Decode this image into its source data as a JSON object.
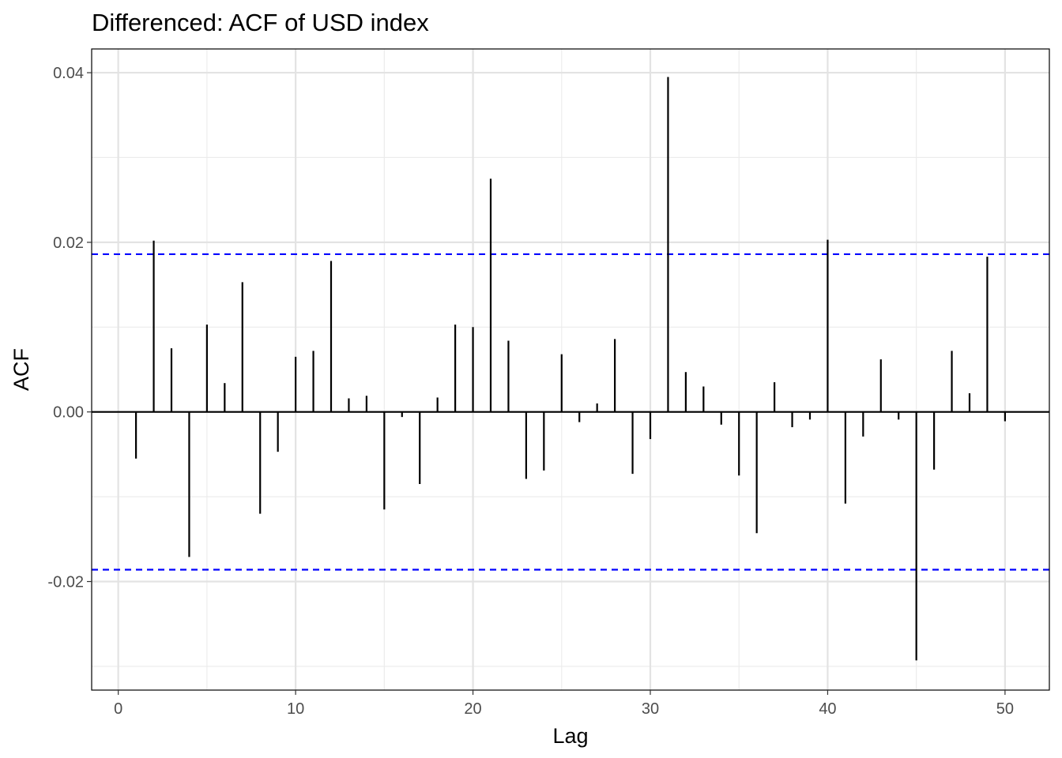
{
  "chart_data": {
    "type": "bar",
    "title": "Differenced: ACF of USD index",
    "xlabel": "Lag",
    "ylabel": "ACF",
    "xlim": [
      -1.5,
      52.5
    ],
    "ylim": [
      -0.0328,
      0.0428
    ],
    "x_ticks": [
      0,
      10,
      20,
      30,
      40,
      50
    ],
    "x_tick_labels": [
      "0",
      "10",
      "20",
      "30",
      "40",
      "50"
    ],
    "y_ticks": [
      -0.02,
      0.0,
      0.02,
      0.04
    ],
    "y_tick_labels": [
      "-0.02",
      "0.00",
      "0.02",
      "0.04"
    ],
    "y_minor_grid": [
      -0.03,
      -0.01,
      0.01,
      0.03
    ],
    "grid": true,
    "confidence_bound": 0.0186,
    "confidence_color": "#0000ff",
    "bar_color": "#000000",
    "x": [
      1,
      2,
      3,
      4,
      5,
      6,
      7,
      8,
      9,
      10,
      11,
      12,
      13,
      14,
      15,
      16,
      17,
      18,
      19,
      20,
      21,
      22,
      23,
      24,
      25,
      26,
      27,
      28,
      29,
      30,
      31,
      32,
      33,
      34,
      35,
      36,
      37,
      38,
      39,
      40,
      41,
      42,
      43,
      44,
      45,
      46,
      47,
      48,
      49,
      50
    ],
    "values": [
      -0.0055,
      0.0202,
      0.0075,
      -0.0171,
      0.0103,
      0.0034,
      0.0153,
      -0.012,
      -0.0047,
      0.0065,
      0.0072,
      0.0178,
      0.0016,
      0.0019,
      -0.0115,
      -0.0006,
      -0.0085,
      0.0017,
      0.0103,
      0.01,
      0.0275,
      0.0084,
      -0.0079,
      -0.0069,
      0.0068,
      -0.0012,
      0.001,
      0.0086,
      -0.0073,
      -0.0032,
      0.0395,
      0.0047,
      0.003,
      -0.0015,
      -0.0075,
      -0.0143,
      0.0035,
      -0.0018,
      -0.0009,
      0.0203,
      -0.0108,
      -0.0029,
      0.0062,
      -0.0009,
      -0.0293,
      -0.0068,
      0.0072,
      0.0022,
      0.0183,
      -0.0011
    ]
  }
}
